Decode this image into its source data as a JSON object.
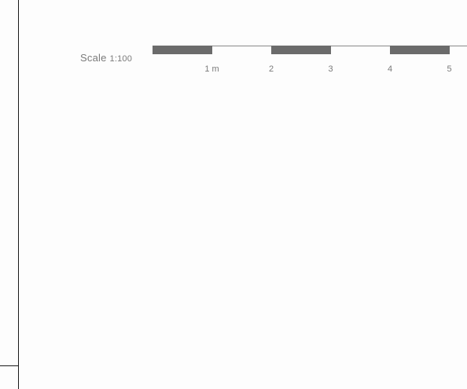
{
  "scale": {
    "label": "Scale",
    "ratio": "1:100",
    "bar_color": "#6b6b6b",
    "text_color": "#7a7a7a",
    "segments": [
      {
        "from": 0,
        "to": 1,
        "filled": true
      },
      {
        "from": 1,
        "to": 2,
        "filled": false
      },
      {
        "from": 2,
        "to": 3,
        "filled": true
      },
      {
        "from": 3,
        "to": 4,
        "filled": false
      },
      {
        "from": 4,
        "to": 5,
        "filled": true
      }
    ],
    "ticks": [
      {
        "value": 1,
        "label": "1 m"
      },
      {
        "value": 2,
        "label": "2"
      },
      {
        "value": 3,
        "label": "3"
      },
      {
        "value": 4,
        "label": "4"
      },
      {
        "value": 5,
        "label": "5"
      }
    ]
  }
}
